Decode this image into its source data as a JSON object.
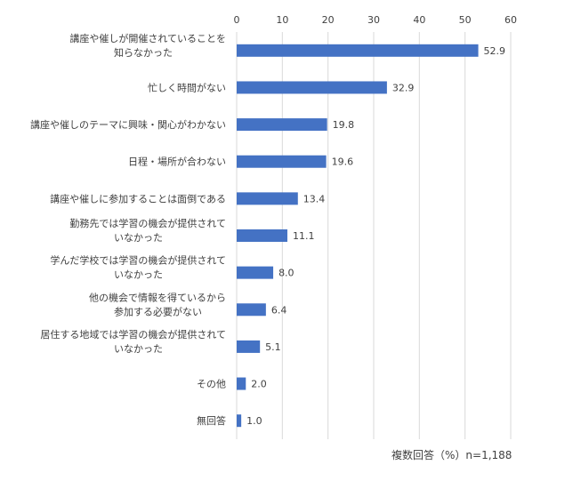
{
  "chart_data": {
    "type": "bar",
    "orientation": "horizontal",
    "categories": [
      [
        "講座や催しが開催されていることを",
        "知らなかった"
      ],
      [
        "忙しく時間がない"
      ],
      [
        "講座や催しのテーマに興味・関心がわかない"
      ],
      [
        "日程・場所が合わない"
      ],
      [
        "講座や催しに参加することは面倒である"
      ],
      [
        "勤務先では学習の機会が提供されて",
        "いなかった"
      ],
      [
        "学んだ学校では学習の機会が提供されて",
        "いなかった"
      ],
      [
        "他の機会で情報を得ているから",
        "参加する必要がない"
      ],
      [
        "居住する地域では学習の機会が提供されて",
        "いなかった"
      ],
      [
        "その他"
      ],
      [
        "無回答"
      ]
    ],
    "values": [
      52.9,
      32.9,
      19.8,
      19.6,
      13.4,
      11.1,
      8.0,
      6.4,
      5.1,
      2.0,
      1.0
    ],
    "value_labels": [
      "52.9",
      "32.9",
      "19.8",
      "19.6",
      "13.4",
      "11.1",
      "8.0",
      "6.4",
      "5.1",
      "2.0",
      "1.0"
    ],
    "xlim": [
      0,
      60
    ],
    "xticks": [
      0,
      10,
      20,
      30,
      40,
      50,
      60
    ],
    "xtick_labels": [
      "0",
      "10",
      "20",
      "30",
      "40",
      "50",
      "60"
    ],
    "axis_position": "top",
    "grid": true,
    "legend": "none",
    "bar_color": "#4472C4",
    "grid_color": "#D9D9D9"
  },
  "footnote": "複数回答（%）n=1,188"
}
